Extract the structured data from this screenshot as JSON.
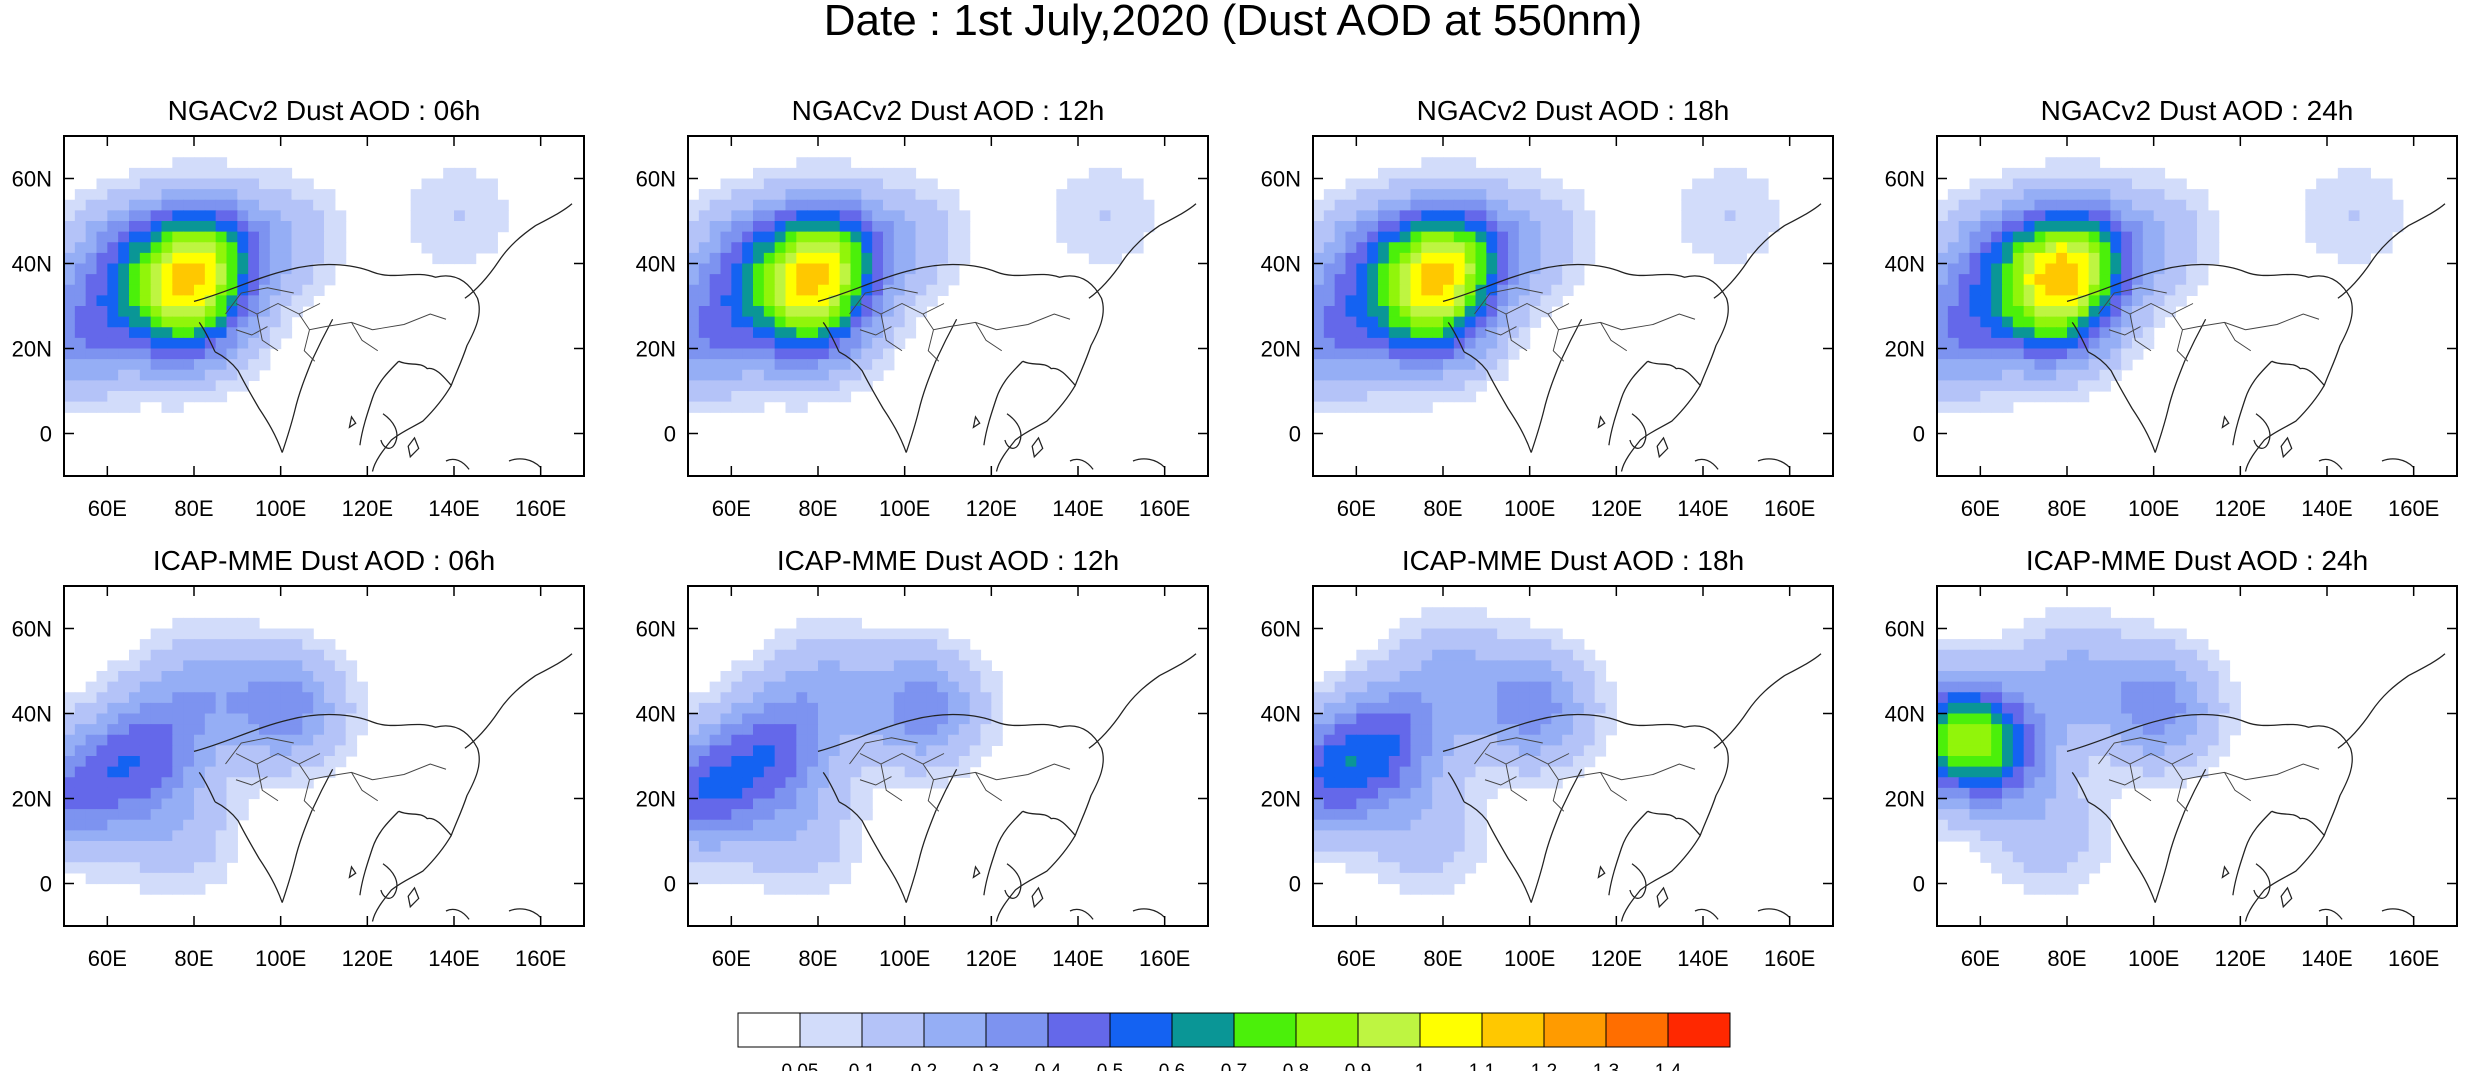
{
  "figure": {
    "title": "Date : 1st July,2020 (Dust AOD at 550nm)"
  },
  "axes": {
    "x_ticks": [
      "60E",
      "80E",
      "100E",
      "120E",
      "140E",
      "160E"
    ],
    "y_ticks": [
      "60N",
      "40N",
      "20N",
      "0"
    ]
  },
  "panels": [
    {
      "title": "NGACv2 Dust AOD : 06h",
      "model": "NGACv2",
      "lead": "06h"
    },
    {
      "title": "NGACv2 Dust AOD : 12h",
      "model": "NGACv2",
      "lead": "12h"
    },
    {
      "title": "NGACv2 Dust AOD : 18h",
      "model": "NGACv2",
      "lead": "18h"
    },
    {
      "title": "NGACv2 Dust AOD : 24h",
      "model": "NGACv2",
      "lead": "24h"
    },
    {
      "title": "ICAP-MME Dust AOD : 06h",
      "model": "ICAP-MME",
      "lead": "06h"
    },
    {
      "title": "ICAP-MME Dust AOD : 12h",
      "model": "ICAP-MME",
      "lead": "12h"
    },
    {
      "title": "ICAP-MME Dust AOD : 18h",
      "model": "ICAP-MME",
      "lead": "18h"
    },
    {
      "title": "ICAP-MME Dust AOD : 24h",
      "model": "ICAP-MME",
      "lead": "24h"
    }
  ],
  "colorbar": {
    "labels": [
      "0.05",
      "0.1",
      "0.2",
      "0.3",
      "0.4",
      "0.5",
      "0.6",
      "0.7",
      "0.8",
      "0.9",
      "1",
      "1.1",
      "1.2",
      "1.3",
      "1.4"
    ],
    "colors": [
      "#ffffff",
      "#d2dcfa",
      "#b4c3f8",
      "#95aef5",
      "#7d93f0",
      "#6468ea",
      "#1462f2",
      "#0a9696",
      "#4bf00a",
      "#91f50a",
      "#bef541",
      "#ffff00",
      "#ffc800",
      "#ff9b00",
      "#ff6e00",
      "#ff2800"
    ]
  },
  "chart_data": [
    {
      "type": "heatmap",
      "title": "NGACv2 Dust AOD : 06h",
      "xlabel": "",
      "ylabel": "",
      "xlim": [
        50,
        170
      ],
      "ylim": [
        -10,
        70
      ],
      "x_ticks": [
        60,
        80,
        100,
        120,
        140,
        160
      ],
      "y_ticks": [
        60,
        40,
        20,
        0
      ],
      "blobs": [
        {
          "lon": 72,
          "lat": 28,
          "value": 0.25
        },
        {
          "lon": 62,
          "lat": 40,
          "value": 0.3
        },
        {
          "lon": 80,
          "lat": 40,
          "value": 0.8
        },
        {
          "lon": 78,
          "lat": 26,
          "value": 0.4
        },
        {
          "lon": 52,
          "lat": 22,
          "value": 0.35
        },
        {
          "lon": 100,
          "lat": 45,
          "value": 0.15
        },
        {
          "lon": 140,
          "lat": 50,
          "value": 0.1
        }
      ]
    },
    {
      "type": "heatmap",
      "title": "NGACv2 Dust AOD : 12h",
      "xlabel": "",
      "ylabel": "",
      "xlim": [
        50,
        170
      ],
      "ylim": [
        -10,
        70
      ],
      "x_ticks": [
        60,
        80,
        100,
        120,
        140,
        160
      ],
      "y_ticks": [
        60,
        40,
        20,
        0
      ],
      "blobs": [
        {
          "lon": 72,
          "lat": 28,
          "value": 0.25
        },
        {
          "lon": 62,
          "lat": 40,
          "value": 0.3
        },
        {
          "lon": 80,
          "lat": 40,
          "value": 0.8
        },
        {
          "lon": 78,
          "lat": 26,
          "value": 0.4
        },
        {
          "lon": 52,
          "lat": 22,
          "value": 0.35
        },
        {
          "lon": 100,
          "lat": 45,
          "value": 0.15
        },
        {
          "lon": 145,
          "lat": 50,
          "value": 0.1
        }
      ]
    },
    {
      "type": "heatmap",
      "title": "NGACv2 Dust AOD : 18h",
      "xlabel": "",
      "ylabel": "",
      "xlim": [
        50,
        170
      ],
      "ylim": [
        -10,
        70
      ],
      "x_ticks": [
        60,
        80,
        100,
        120,
        140,
        160
      ],
      "y_ticks": [
        60,
        40,
        20,
        0
      ],
      "blobs": [
        {
          "lon": 72,
          "lat": 28,
          "value": 0.25
        },
        {
          "lon": 62,
          "lat": 40,
          "value": 0.3
        },
        {
          "lon": 80,
          "lat": 40,
          "value": 0.8
        },
        {
          "lon": 77,
          "lat": 26,
          "value": 0.4
        },
        {
          "lon": 52,
          "lat": 22,
          "value": 0.35
        },
        {
          "lon": 100,
          "lat": 45,
          "value": 0.15
        },
        {
          "lon": 145,
          "lat": 50,
          "value": 0.1
        }
      ]
    },
    {
      "type": "heatmap",
      "title": "NGACv2 Dust AOD : 24h",
      "xlabel": "",
      "ylabel": "",
      "xlim": [
        50,
        170
      ],
      "ylim": [
        -10,
        70
      ],
      "x_ticks": [
        60,
        80,
        100,
        120,
        140,
        160
      ],
      "y_ticks": [
        60,
        40,
        20,
        0
      ],
      "blobs": [
        {
          "lon": 72,
          "lat": 28,
          "value": 0.25
        },
        {
          "lon": 62,
          "lat": 40,
          "value": 0.3
        },
        {
          "lon": 80,
          "lat": 40,
          "value": 0.8
        },
        {
          "lon": 77,
          "lat": 27,
          "value": 0.4
        },
        {
          "lon": 52,
          "lat": 22,
          "value": 0.35
        },
        {
          "lon": 100,
          "lat": 45,
          "value": 0.15
        },
        {
          "lon": 145,
          "lat": 50,
          "value": 0.1
        }
      ]
    },
    {
      "type": "heatmap",
      "title": "ICAP-MME Dust AOD : 06h",
      "xlabel": "",
      "ylabel": "",
      "xlim": [
        50,
        170
      ],
      "ylim": [
        -10,
        70
      ],
      "x_ticks": [
        60,
        80,
        100,
        120,
        140,
        160
      ],
      "y_ticks": [
        60,
        40,
        20,
        0
      ],
      "blobs": [
        {
          "lon": 68,
          "lat": 30,
          "value": 0.4
        },
        {
          "lon": 100,
          "lat": 40,
          "value": 0.35
        },
        {
          "lon": 52,
          "lat": 20,
          "value": 0.4
        },
        {
          "lon": 80,
          "lat": 45,
          "value": 0.2
        },
        {
          "lon": 75,
          "lat": 10,
          "value": 0.15
        }
      ]
    },
    {
      "type": "heatmap",
      "title": "ICAP-MME Dust AOD : 12h",
      "xlabel": "",
      "ylabel": "",
      "xlim": [
        50,
        170
      ],
      "ylim": [
        -10,
        70
      ],
      "x_ticks": [
        60,
        80,
        100,
        120,
        140,
        160
      ],
      "y_ticks": [
        60,
        40,
        20,
        0
      ],
      "blobs": [
        {
          "lon": 68,
          "lat": 30,
          "value": 0.4
        },
        {
          "lon": 103,
          "lat": 40,
          "value": 0.35
        },
        {
          "lon": 52,
          "lat": 20,
          "value": 0.45
        },
        {
          "lon": 80,
          "lat": 45,
          "value": 0.2
        },
        {
          "lon": 75,
          "lat": 10,
          "value": 0.15
        }
      ]
    },
    {
      "type": "heatmap",
      "title": "ICAP-MME Dust AOD : 18h",
      "xlabel": "",
      "ylabel": "",
      "xlim": [
        50,
        170
      ],
      "ylim": [
        -10,
        70
      ],
      "x_ticks": [
        60,
        80,
        100,
        120,
        140,
        160
      ],
      "y_ticks": [
        60,
        40,
        20,
        0
      ],
      "blobs": [
        {
          "lon": 66,
          "lat": 32,
          "value": 0.4
        },
        {
          "lon": 100,
          "lat": 40,
          "value": 0.35
        },
        {
          "lon": 52,
          "lat": 24,
          "value": 0.45
        },
        {
          "lon": 80,
          "lat": 48,
          "value": 0.2
        },
        {
          "lon": 75,
          "lat": 10,
          "value": 0.15
        }
      ]
    },
    {
      "type": "heatmap",
      "title": "ICAP-MME Dust AOD : 24h",
      "xlabel": "",
      "ylabel": "",
      "xlim": [
        50,
        170
      ],
      "ylim": [
        -10,
        70
      ],
      "x_ticks": [
        60,
        80,
        100,
        120,
        140,
        160
      ],
      "y_ticks": [
        60,
        40,
        20,
        0
      ],
      "blobs": [
        {
          "lon": 62,
          "lat": 30,
          "value": 0.45
        },
        {
          "lon": 100,
          "lat": 40,
          "value": 0.35
        },
        {
          "lon": 52,
          "lat": 34,
          "value": 0.6
        },
        {
          "lon": 80,
          "lat": 48,
          "value": 0.2
        },
        {
          "lon": 75,
          "lat": 10,
          "value": 0.15
        }
      ]
    }
  ]
}
